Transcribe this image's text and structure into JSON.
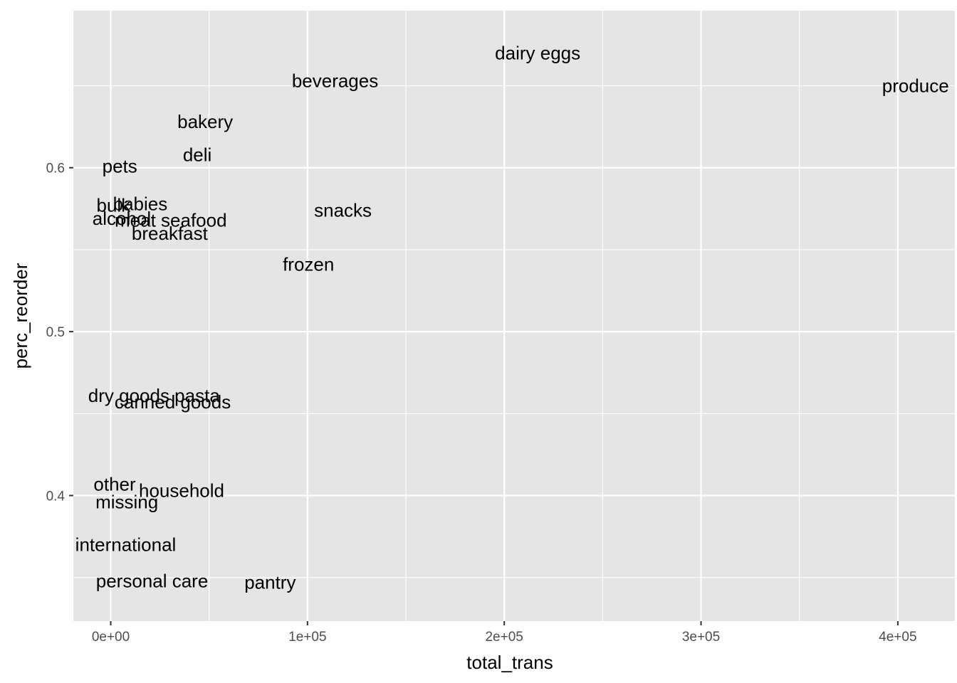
{
  "chart_data": {
    "type": "scatter",
    "title": "",
    "xlabel": "total_trans",
    "ylabel": "perc_reorder",
    "xlim": [
      -19000,
      429000
    ],
    "ylim": [
      0.3234,
      0.6958
    ],
    "x_ticks": [
      {
        "value": 0,
        "label": "0e+00"
      },
      {
        "value": 100000,
        "label": "1e+05"
      },
      {
        "value": 200000,
        "label": "2e+05"
      },
      {
        "value": 300000,
        "label": "3e+05"
      },
      {
        "value": 400000,
        "label": "4e+05"
      }
    ],
    "x_minor": [
      50000,
      150000,
      250000,
      350000
    ],
    "y_ticks": [
      {
        "value": 0.4,
        "label": "0.4"
      },
      {
        "value": 0.5,
        "label": "0.5"
      },
      {
        "value": 0.6,
        "label": "0.6"
      }
    ],
    "y_minor": [
      0.35,
      0.45,
      0.55,
      0.65
    ],
    "grid": true,
    "legend": "none",
    "marker": "text",
    "colors": {
      "panel": "#e5e5e5",
      "grid": "#ffffff",
      "text": "#000000",
      "tick_text": "#4d4d4d",
      "tick_mark": "#333333"
    },
    "points": [
      {
        "label": "produce",
        "x": 409000,
        "y": 0.65
      },
      {
        "label": "dairy eggs",
        "x": 217000,
        "y": 0.67
      },
      {
        "label": "beverages",
        "x": 114000,
        "y": 0.653
      },
      {
        "label": "bakery",
        "x": 48000,
        "y": 0.628
      },
      {
        "label": "pets",
        "x": 4600,
        "y": 0.601
      },
      {
        "label": "deli",
        "x": 44000,
        "y": 0.608
      },
      {
        "label": "alcohol",
        "x": 5600,
        "y": 0.569
      },
      {
        "label": "meat seafood",
        "x": 30500,
        "y": 0.568
      },
      {
        "label": "snacks",
        "x": 118000,
        "y": 0.574
      },
      {
        "label": "bulk",
        "x": 1400,
        "y": 0.577
      },
      {
        "label": "breakfast",
        "x": 30000,
        "y": 0.56
      },
      {
        "label": "frozen",
        "x": 100500,
        "y": 0.541
      },
      {
        "label": "babies",
        "x": 15000,
        "y": 0.578
      },
      {
        "label": "dry goods pasta",
        "x": 22000,
        "y": 0.461
      },
      {
        "label": "canned goods",
        "x": 31500,
        "y": 0.457
      },
      {
        "label": "household",
        "x": 36000,
        "y": 0.403
      },
      {
        "label": "other",
        "x": 2000,
        "y": 0.407
      },
      {
        "label": "missing",
        "x": 8200,
        "y": 0.396
      },
      {
        "label": "international",
        "x": 7600,
        "y": 0.37
      },
      {
        "label": "pantry",
        "x": 81000,
        "y": 0.347
      },
      {
        "label": "personal care",
        "x": 21000,
        "y": 0.348
      }
    ]
  }
}
